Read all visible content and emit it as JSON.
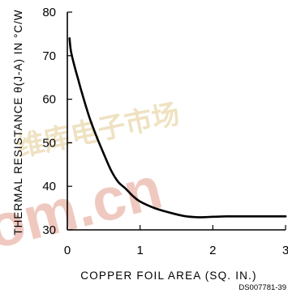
{
  "colors": {
    "axis": "#000000",
    "curve": "#000000",
    "watermark_red": "#e8b0a4",
    "watermark_gold": "#e9d6a6"
  },
  "watermark": {
    "text": "om.cn",
    "chinese": "维库电子市场"
  },
  "footer": {
    "code": "DS007781-39"
  },
  "chart_data": {
    "type": "line",
    "xlabel": "COPPER FOIL AREA (SQ. IN.)",
    "ylabel": "THERMAL RESISTANCE θ(J-A) IN °C/W",
    "xlim": [
      0,
      3
    ],
    "ylim": [
      30,
      80
    ],
    "xticks": [
      0,
      1,
      2,
      3
    ],
    "yticks": [
      30,
      40,
      50,
      60,
      70,
      80
    ],
    "xtick_labels": [
      "0",
      "1",
      "2",
      "3"
    ],
    "ytick_labels": [
      "30",
      "40",
      "50",
      "60",
      "70",
      "80"
    ],
    "grid": false,
    "series": [
      {
        "x": [
          0.03,
          0.05,
          0.1,
          0.15,
          0.2,
          0.3,
          0.4,
          0.5,
          0.6,
          0.7,
          0.8,
          0.9,
          1.0,
          1.2,
          1.4,
          1.6,
          1.8,
          2.0,
          2.2,
          2.5,
          2.8,
          3.0
        ],
        "y": [
          74.0,
          71.0,
          67.5,
          64.5,
          61.5,
          56.0,
          51.5,
          47.5,
          43.7,
          41.0,
          39.5,
          37.8,
          36.5,
          35.0,
          34.0,
          33.2,
          32.9,
          33.0,
          33.1,
          33.1,
          33.1,
          33.1
        ]
      }
    ]
  }
}
